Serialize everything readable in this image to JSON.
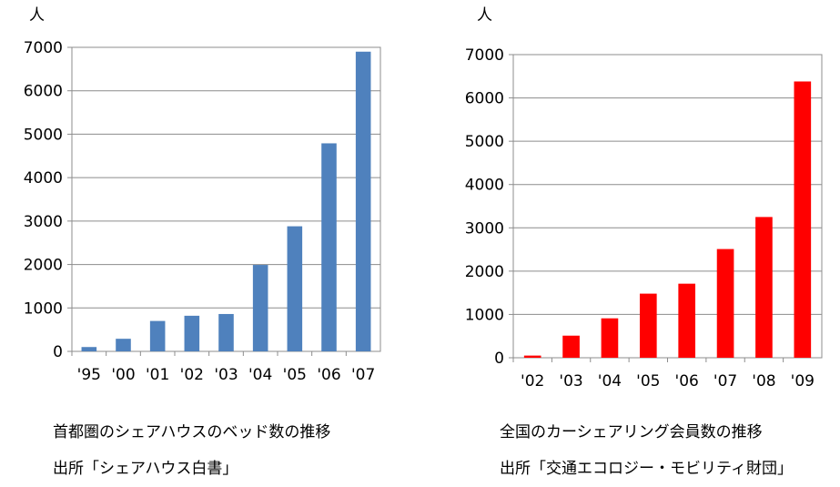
{
  "chart_data": [
    {
      "type": "bar",
      "unit_label": "人",
      "categories": [
        "'95",
        "'00",
        "'01",
        "'02",
        "'03",
        "'04",
        "'05",
        "'06",
        "'07"
      ],
      "values": [
        100,
        290,
        700,
        820,
        860,
        1990,
        2880,
        4790,
        6900
      ],
      "ylim": [
        0,
        7000
      ],
      "yticks": [
        "0",
        "1000",
        "2000",
        "3000",
        "4000",
        "5000",
        "6000",
        "7000"
      ],
      "grid": true,
      "bar_color": "#4f81bd",
      "caption": "首都圏のシェアハウスのベッド数の推移",
      "source": "出所「シェアハウス白書」"
    },
    {
      "type": "bar",
      "unit_label": "人",
      "categories": [
        "'02",
        "'03",
        "'04",
        "'05",
        "'06",
        "'07",
        "'08",
        "'09"
      ],
      "values": [
        50,
        510,
        910,
        1480,
        1710,
        2510,
        3250,
        6380
      ],
      "ylim": [
        0,
        7000
      ],
      "yticks": [
        "0",
        "1000",
        "2000",
        "3000",
        "4000",
        "5000",
        "6000",
        "7000"
      ],
      "grid": true,
      "bar_color": "#ff0000",
      "caption": "全国のカーシェアリング会員数の推移",
      "source": "出所「交通エコロジー・モビリティ財団」"
    }
  ]
}
